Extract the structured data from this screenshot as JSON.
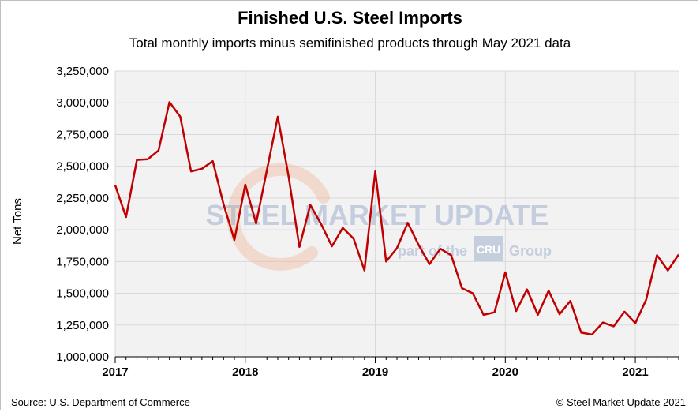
{
  "chart_data": {
    "type": "line",
    "title": "Finished U.S. Steel Imports",
    "subtitle": "Total monthly imports minus semifinished products through May 2021 data",
    "ylabel": "Net Tons",
    "xlabel": "",
    "ylim": [
      1000000,
      3250000
    ],
    "yticks": [
      1000000,
      1250000,
      1500000,
      1750000,
      2000000,
      2250000,
      2500000,
      2750000,
      3000000,
      3250000
    ],
    "ytick_labels": [
      "1,000,000",
      "1,250,000",
      "1,500,000",
      "1,750,000",
      "2,000,000",
      "2,250,000",
      "2,500,000",
      "2,750,000",
      "3,000,000",
      "3,250,000"
    ],
    "xticks": [
      "2017",
      "2018",
      "2019",
      "2020",
      "2021"
    ],
    "grid": true,
    "legend": "none",
    "series": [
      {
        "color": "#c00000",
        "x": [
          "2017-01",
          "2017-02",
          "2017-03",
          "2017-04",
          "2017-05",
          "2017-06",
          "2017-07",
          "2017-08",
          "2017-09",
          "2017-10",
          "2017-11",
          "2017-12",
          "2018-01",
          "2018-02",
          "2018-03",
          "2018-04",
          "2018-05",
          "2018-06",
          "2018-07",
          "2018-08",
          "2018-09",
          "2018-10",
          "2018-11",
          "2018-12",
          "2019-01",
          "2019-02",
          "2019-03",
          "2019-04",
          "2019-05",
          "2019-06",
          "2019-07",
          "2019-08",
          "2019-09",
          "2019-10",
          "2019-11",
          "2019-12",
          "2020-01",
          "2020-02",
          "2020-03",
          "2020-04",
          "2020-05",
          "2020-06",
          "2020-07",
          "2020-08",
          "2020-09",
          "2020-10",
          "2020-11",
          "2020-12",
          "2021-01",
          "2021-02",
          "2021-03",
          "2021-04",
          "2021-05"
        ],
        "values": [
          2350000,
          2100000,
          2550000,
          2555000,
          2625000,
          3005000,
          2890000,
          2460000,
          2480000,
          2540000,
          2200000,
          1920000,
          2355000,
          2050000,
          2470000,
          2890000,
          2420000,
          1865000,
          2195000,
          2045000,
          1870000,
          2015000,
          1930000,
          1680000,
          2460000,
          1750000,
          1855000,
          2055000,
          1880000,
          1730000,
          1850000,
          1800000,
          1540000,
          1500000,
          1330000,
          1350000,
          1665000,
          1360000,
          1530000,
          1330000,
          1520000,
          1335000,
          1440000,
          1190000,
          1175000,
          1270000,
          1240000,
          1355000,
          1265000,
          1450000,
          1800000,
          1680000,
          1805000
        ]
      }
    ]
  },
  "watermark": {
    "main": "STEEL MARKET UPDATE",
    "sub_prefix": "part of the",
    "cru": "CRU",
    "sub_suffix": "Group"
  },
  "footer": {
    "source": "Source: U.S. Department of Commerce",
    "copyright": "© Steel Market Update 2021"
  },
  "colors": {
    "line": "#c00000",
    "plot_bg": "#f2f2f2",
    "grid": "#d9d9d9",
    "watermark_blue": "#9fb0cc",
    "watermark_orange": "#f0b08a"
  }
}
